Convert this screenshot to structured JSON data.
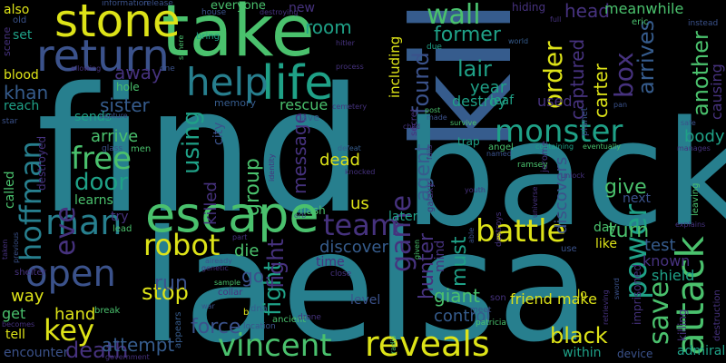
{
  "palette": {
    "background": "#000000",
    "purple": "#46327e",
    "indigo": "#3b528b",
    "blue": "#365c8d",
    "teal": "#277f8e",
    "green": "#1fa187",
    "lime": "#4ac16d",
    "yellow": "#dde318"
  },
  "words": [
    "find",
    "kill",
    "back",
    "la",
    "elsa",
    "take",
    "stone",
    "return",
    "life",
    "help",
    "escape",
    "man",
    "open",
    "robot",
    "eve",
    "hoffman",
    "free",
    "door",
    "key",
    "vincent",
    "reveals",
    "battle",
    "attack",
    "power",
    "save",
    "monster",
    "game",
    "team",
    "order",
    "wall",
    "former",
    "lair",
    "found",
    "box",
    "arrives",
    "another",
    "captured",
    "head",
    "meanwhile",
    "using",
    "fight",
    "group",
    "stop",
    "death",
    "hand",
    "force",
    "attempt",
    "khan",
    "sister",
    "away",
    "hole",
    "arrive",
    "blood",
    "reach",
    "way",
    "get",
    "tell",
    "encounter",
    "also",
    "old",
    "set",
    "scene",
    "everyone",
    "information",
    "release",
    "room",
    "new",
    "including",
    "year",
    "destroy",
    "leaf",
    "used",
    "carter",
    "causing",
    "body",
    "turn",
    "test",
    "give",
    "next",
    "known",
    "shield",
    "black",
    "within",
    "admiral",
    "device",
    "friend",
    "make",
    "giant",
    "control",
    "must",
    "hunter",
    "agent",
    "discovers",
    "later",
    "us",
    "dead",
    "flash",
    "message",
    "die",
    "go",
    "fight",
    "run",
    "killed",
    "city",
    "sends",
    "called",
    "destroyed",
    "learns",
    "try",
    "lead",
    "rescue",
    "cave",
    "memory",
    "bring",
    "house",
    "sphere",
    "hitler",
    "world",
    "due",
    "eric",
    "full",
    "instead",
    "star",
    "men",
    "glass",
    "sample",
    "collar",
    "b",
    "dna",
    "location",
    "ancient",
    "drone",
    "level",
    "close",
    "meet",
    "son",
    "patricia",
    "lo",
    "radio",
    "secret",
    "galaxy",
    "trap",
    "angel",
    "planet",
    "jerome",
    "ramsey",
    "day",
    "like",
    "use",
    "discover",
    "time",
    "mind",
    "killing",
    "imprisoned",
    "leaving",
    "manages",
    "explains",
    "safe",
    "destruction",
    "sword",
    "retrieving",
    "break",
    "appears",
    "government",
    "war",
    "identity",
    "genetic",
    "already",
    "part",
    "shelter",
    "taken",
    "previous",
    "becomes",
    "capture",
    "allowing",
    "one",
    "process",
    "post",
    "made",
    "child",
    "survive",
    "named",
    "containing",
    "eventually",
    "unlock",
    "youth",
    "universe",
    "able",
    "destroys",
    "given",
    "knocked",
    "orb",
    "defeat",
    "cemetery",
    "hiding",
    "destroying",
    "pan",
    "fails"
  ]
}
